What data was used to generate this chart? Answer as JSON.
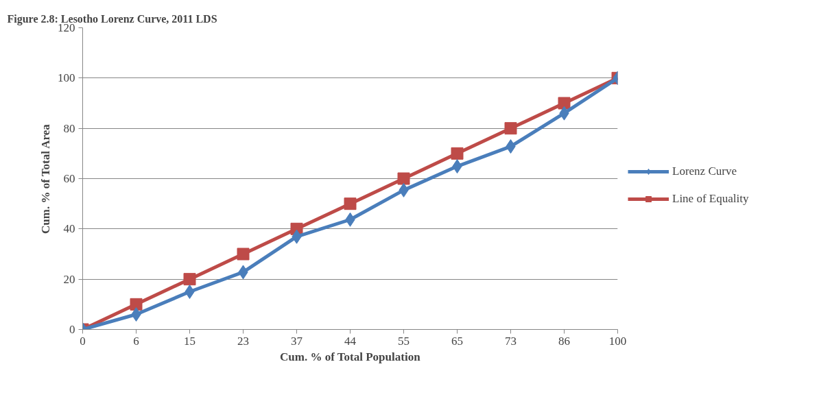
{
  "chart_data": {
    "type": "line",
    "title": "Figure 2.8: Lesotho Lorenz Curve, 2011 LDS",
    "xlabel": "Cum. % of Total Population",
    "ylabel": "Cum. % of Total Area",
    "categories": [
      "0",
      "6",
      "15",
      "23",
      "37",
      "44",
      "55",
      "65",
      "73",
      "86",
      "100"
    ],
    "series": [
      {
        "name": "Lorenz Curve",
        "color": "#4a7ebb",
        "marker": "diamond",
        "values": [
          0,
          6,
          15,
          22.8,
          36.9,
          43.7,
          55.4,
          64.9,
          72.8,
          86,
          100
        ]
      },
      {
        "name": "Line of Equality",
        "color": "#be4b48",
        "marker": "square",
        "values": [
          0,
          10,
          20,
          30,
          40,
          50,
          60,
          70,
          80,
          90,
          100
        ]
      }
    ],
    "ylim": [
      0,
      120
    ],
    "yticks": [
      0,
      20,
      40,
      60,
      80,
      100,
      120
    ],
    "grid": "y",
    "legend": "right",
    "line_style": "solid"
  }
}
